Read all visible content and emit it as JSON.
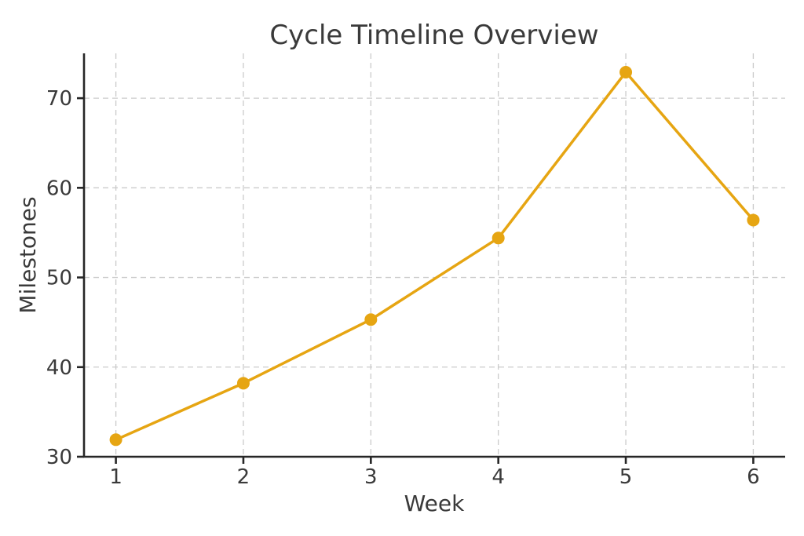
{
  "figure": {
    "title": "Cycle Timeline Overview",
    "xlabel": "Week",
    "ylabel": "Milestones"
  },
  "chart_data": {
    "type": "line",
    "title": "Cycle Timeline Overview",
    "xlabel": "Week",
    "ylabel": "Milestones",
    "x": [
      1,
      2,
      3,
      4,
      5,
      6
    ],
    "series": [
      {
        "name": "Milestones",
        "values": [
          31.9,
          38.2,
          45.3,
          54.4,
          72.9,
          56.4
        ]
      }
    ],
    "xticks": [
      1,
      2,
      3,
      4,
      5,
      6
    ],
    "yticks": [
      30,
      40,
      50,
      60,
      70
    ],
    "xlim": [
      0.75,
      6.25
    ],
    "ylim": [
      30,
      75
    ],
    "grid": true,
    "grid_style": "dashed",
    "legend_position": "none",
    "marker": "circle"
  },
  "style": {
    "line_color": "#E6A512",
    "marker_color": "#E6A512",
    "grid_color": "#CBCBCB",
    "spine_color": "#262626",
    "text_color": "#3A3A3A",
    "background": "#FFFFFF"
  }
}
